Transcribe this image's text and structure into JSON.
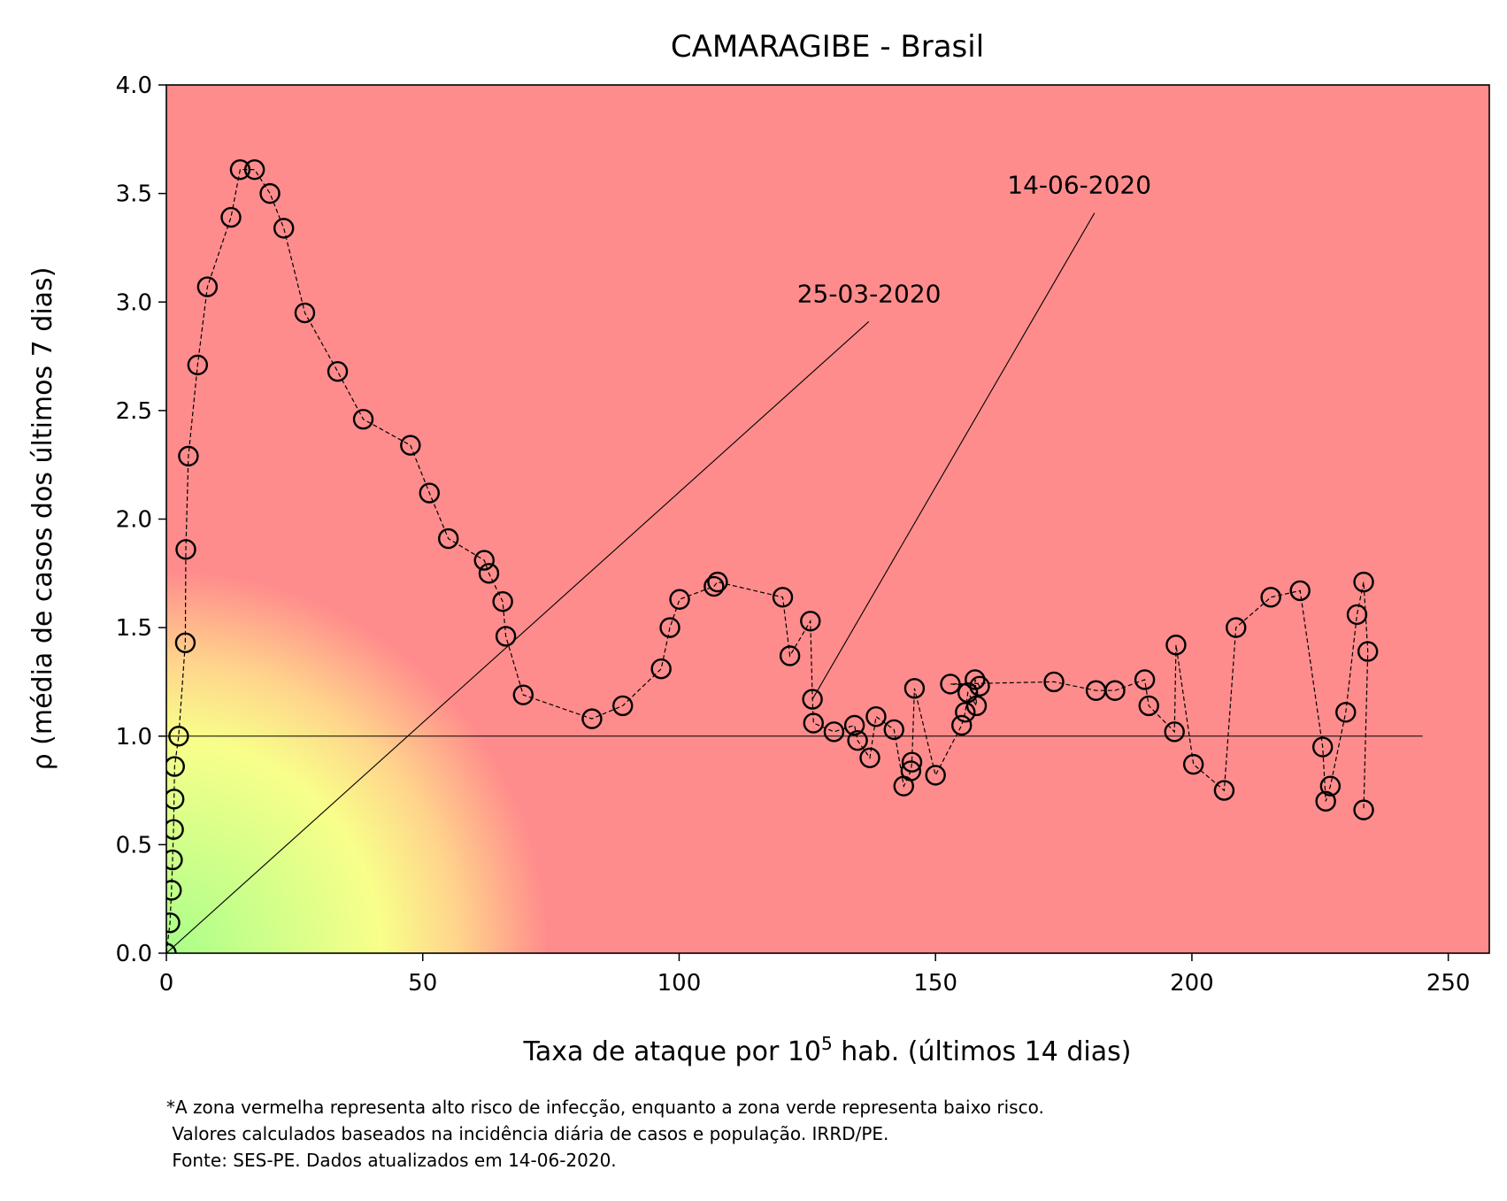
{
  "chart_data": {
    "type": "line",
    "title": "CAMARAGIBE - Brasil",
    "xlabel_prefix": "Taxa de ataque por 10",
    "xlabel_sup": "5",
    "xlabel_suffix": " hab. (últimos 14 dias)",
    "ylabel": "ρ (média de casos dos últimos 7 dias)",
    "xlim": [
      0,
      258
    ],
    "ylim": [
      0,
      4.0
    ],
    "xticks": [
      0,
      50,
      100,
      150,
      200,
      250
    ],
    "xtick_labels": [
      "0",
      "50",
      "100",
      "150",
      "200",
      "250"
    ],
    "yticks": [
      0,
      0.5,
      1.0,
      1.5,
      2.0,
      2.5,
      3.0,
      3.5,
      4.0
    ],
    "ytick_labels": [
      "0.0",
      "0.5",
      "1.0",
      "1.5",
      "2.0",
      "2.5",
      "3.0",
      "3.5",
      "4.0"
    ],
    "reference_line": {
      "y": 1.0,
      "x_range": [
        0,
        245
      ]
    },
    "background": {
      "high_risk_color": "#ff8c8c",
      "mid_color": "#f8ff8a",
      "low_risk_color": "#a8ff8a"
    },
    "series": [
      {
        "x": [
          0.0,
          0.7,
          1.0,
          1.2,
          1.4,
          1.5,
          1.6,
          2.4,
          3.7,
          3.8,
          4.3,
          6.1,
          8.0,
          12.6,
          14.4,
          17.2,
          20.2,
          22.9,
          27.0,
          33.4,
          38.4,
          47.6,
          51.3,
          55.0,
          62.0,
          62.9,
          65.6,
          66.2,
          69.6,
          83.0,
          89.0,
          96.5,
          98.2,
          100.1,
          106.8,
          107.5,
          120.2,
          121.6,
          125.6,
          126.0,
          126.2,
          130.2,
          134.2,
          134.8,
          137.2,
          138.4,
          141.9,
          143.8,
          145.2,
          145.4,
          145.9,
          150.0,
          155.1,
          155.8,
          156.3,
          158.0,
          157.7,
          158.6,
          152.9,
          173.1,
          181.3,
          185.0,
          190.8,
          191.6,
          196.6,
          196.9,
          200.3,
          206.3,
          208.6,
          215.4,
          221.1,
          225.5,
          226.1,
          227.0,
          230.0,
          232.2,
          233.5,
          234.3,
          233.5
        ],
        "y": [
          0.0,
          0.14,
          0.29,
          0.43,
          0.57,
          0.71,
          0.86,
          1.0,
          1.43,
          1.86,
          2.29,
          2.71,
          3.07,
          3.39,
          3.61,
          3.61,
          3.5,
          3.34,
          2.95,
          2.68,
          2.46,
          2.34,
          2.12,
          1.91,
          1.81,
          1.75,
          1.62,
          1.46,
          1.19,
          1.08,
          1.14,
          1.31,
          1.5,
          1.63,
          1.69,
          1.71,
          1.64,
          1.37,
          1.53,
          1.17,
          1.06,
          1.02,
          1.05,
          0.98,
          0.9,
          1.09,
          1.03,
          0.77,
          0.84,
          0.88,
          1.22,
          0.82,
          1.05,
          1.11,
          1.2,
          1.14,
          1.26,
          1.23,
          1.24,
          1.25,
          1.21,
          1.21,
          1.26,
          1.14,
          1.02,
          1.42,
          0.87,
          0.75,
          1.5,
          1.64,
          1.67,
          0.95,
          0.7,
          0.77,
          1.11,
          1.56,
          1.71,
          1.39,
          0.66
        ]
      }
    ],
    "annotations": [
      {
        "text": "25-03-2020",
        "point": [
          0.0,
          0.0
        ],
        "text_pos": [
          123,
          3.0
        ],
        "line_end": [
          137,
          2.91
        ]
      },
      {
        "text": "14-06-2020",
        "point": [
          126.0,
          1.17
        ],
        "text_pos": [
          164,
          3.5
        ],
        "line_end": [
          181,
          3.41
        ]
      }
    ]
  },
  "footnote": {
    "line1": "*A zona vermelha representa alto risco de infecção, enquanto a zona verde representa baixo risco.",
    "line2": " Valores calculados baseados na incidência diária de casos e população. IRRD/PE.",
    "line3": " Fonte: SES-PE. Dados atualizados em 14-06-2020."
  }
}
